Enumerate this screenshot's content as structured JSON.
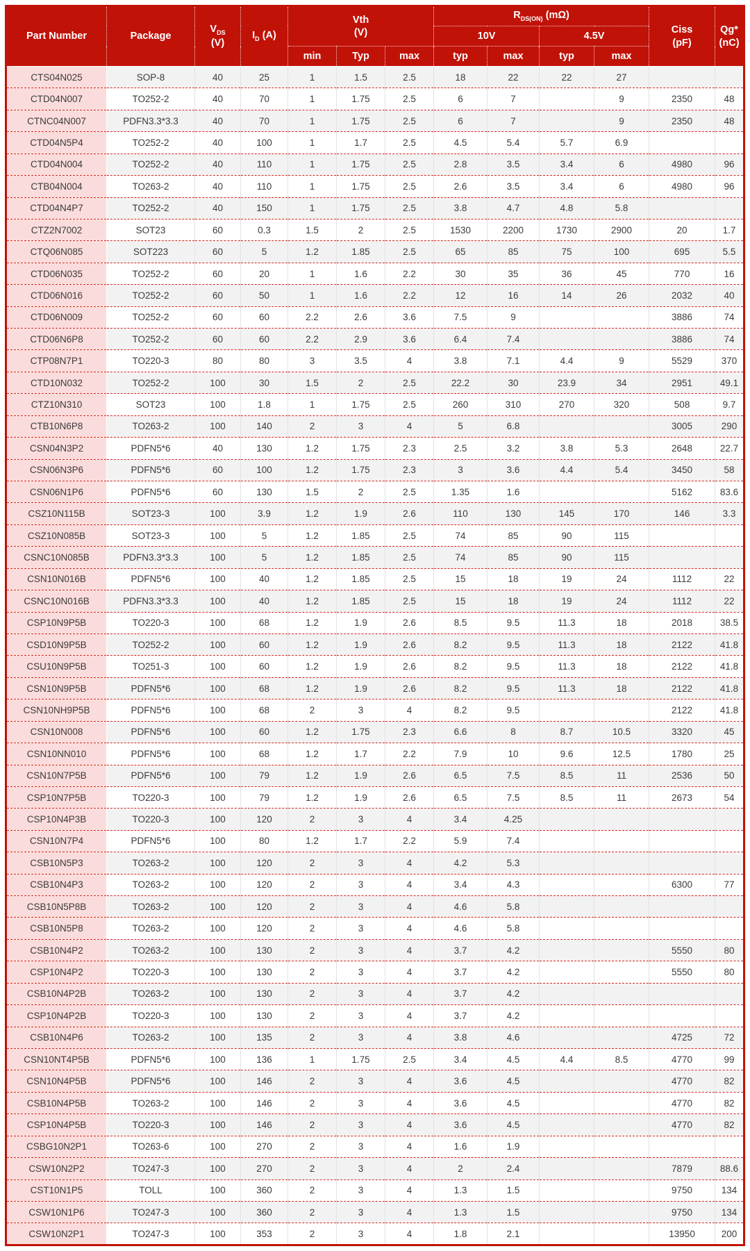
{
  "colors": {
    "header_red": "#c11208",
    "row_separator_red": "#d4261c",
    "part_number_column_pink": "#fbdcdc",
    "zebra_gray": "#f2f2f2"
  },
  "header": {
    "part_number": "Part Number",
    "package": "Package",
    "vds": {
      "base": "V",
      "sub": "DS",
      "unit": "(V)"
    },
    "id": {
      "base": "I",
      "sub": "D",
      "unit": "(A)"
    },
    "vth": {
      "title": "Vth",
      "unit": "(V)",
      "subcols": [
        "min",
        "Typ",
        "max"
      ]
    },
    "rdson": {
      "base": "R",
      "sub": "DS(ON)",
      "unit": "(mΩ)",
      "groups": [
        "10V",
        "4.5V"
      ],
      "subcols": [
        "typ",
        "max",
        "typ",
        "max"
      ]
    },
    "ciss": {
      "title": "Ciss",
      "unit": "(pF)"
    },
    "qg": {
      "title": "Qg*",
      "unit": "(nC)"
    }
  },
  "table": {
    "columns": [
      "Part Number",
      "Package",
      "VDS (V)",
      "ID (A)",
      "Vth min (V)",
      "Vth Typ (V)",
      "Vth max (V)",
      "RDS(ON) 10V typ (mΩ)",
      "RDS(ON) 10V max (mΩ)",
      "RDS(ON) 4.5V typ (mΩ)",
      "RDS(ON) 4.5V max (mΩ)",
      "Ciss (pF)",
      "Qg* (nC)"
    ],
    "rows": [
      [
        "CTS04N025",
        "SOP-8",
        "40",
        "25",
        "1",
        "1.5",
        "2.5",
        "18",
        "22",
        "22",
        "27",
        "",
        ""
      ],
      [
        "CTD04N007",
        "TO252-2",
        "40",
        "70",
        "1",
        "1.75",
        "2.5",
        "6",
        "7",
        "",
        "9",
        "2350",
        "48"
      ],
      [
        "CTNC04N007",
        "PDFN3.3*3.3",
        "40",
        "70",
        "1",
        "1.75",
        "2.5",
        "6",
        "7",
        "",
        "9",
        "2350",
        "48"
      ],
      [
        "CTD04N5P4",
        "TO252-2",
        "40",
        "100",
        "1",
        "1.7",
        "2.5",
        "4.5",
        "5.4",
        "5.7",
        "6.9",
        "",
        ""
      ],
      [
        "CTD04N004",
        "TO252-2",
        "40",
        "110",
        "1",
        "1.75",
        "2.5",
        "2.8",
        "3.5",
        "3.4",
        "6",
        "4980",
        "96"
      ],
      [
        "CTB04N004",
        "TO263-2",
        "40",
        "110",
        "1",
        "1.75",
        "2.5",
        "2.6",
        "3.5",
        "3.4",
        "6",
        "4980",
        "96"
      ],
      [
        "CTD04N4P7",
        "TO252-2",
        "40",
        "150",
        "1",
        "1.75",
        "2.5",
        "3.8",
        "4.7",
        "4.8",
        "5.8",
        "",
        ""
      ],
      [
        "CTZ2N7002",
        "SOT23",
        "60",
        "0.3",
        "1.5",
        "2",
        "2.5",
        "1530",
        "2200",
        "1730",
        "2900",
        "20",
        "1.7"
      ],
      [
        "CTQ06N085",
        "SOT223",
        "60",
        "5",
        "1.2",
        "1.85",
        "2.5",
        "65",
        "85",
        "75",
        "100",
        "695",
        "5.5"
      ],
      [
        "CTD06N035",
        "TO252-2",
        "60",
        "20",
        "1",
        "1.6",
        "2.2",
        "30",
        "35",
        "36",
        "45",
        "770",
        "16"
      ],
      [
        "CTD06N016",
        "TO252-2",
        "60",
        "50",
        "1",
        "1.6",
        "2.2",
        "12",
        "16",
        "14",
        "26",
        "2032",
        "40"
      ],
      [
        "CTD06N009",
        "TO252-2",
        "60",
        "60",
        "2.2",
        "2.6",
        "3.6",
        "7.5",
        "9",
        "",
        "",
        "3886",
        "74"
      ],
      [
        "CTD06N6P8",
        "TO252-2",
        "60",
        "60",
        "2.2",
        "2.9",
        "3.6",
        "6.4",
        "7.4",
        "",
        "",
        "3886",
        "74"
      ],
      [
        "CTP08N7P1",
        "TO220-3",
        "80",
        "80",
        "3",
        "3.5",
        "4",
        "3.8",
        "7.1",
        "4.4",
        "9",
        "5529",
        "370"
      ],
      [
        "CTD10N032",
        "TO252-2",
        "100",
        "30",
        "1.5",
        "2",
        "2.5",
        "22.2",
        "30",
        "23.9",
        "34",
        "2951",
        "49.1"
      ],
      [
        "CTZ10N310",
        "SOT23",
        "100",
        "1.8",
        "1",
        "1.75",
        "2.5",
        "260",
        "310",
        "270",
        "320",
        "508",
        "9.7"
      ],
      [
        "CTB10N6P8",
        "TO263-2",
        "100",
        "140",
        "2",
        "3",
        "4",
        "5",
        "6.8",
        "",
        "",
        "3005",
        "290"
      ],
      [
        "CSN04N3P2",
        "PDFN5*6",
        "40",
        "130",
        "1.2",
        "1.75",
        "2.3",
        "2.5",
        "3.2",
        "3.8",
        "5.3",
        "2648",
        "22.7"
      ],
      [
        "CSN06N3P6",
        "PDFN5*6",
        "60",
        "100",
        "1.2",
        "1.75",
        "2.3",
        "3",
        "3.6",
        "4.4",
        "5.4",
        "3450",
        "58"
      ],
      [
        "CSN06N1P6",
        "PDFN5*6",
        "60",
        "130",
        "1.5",
        "2",
        "2.5",
        "1.35",
        "1.6",
        "",
        "",
        "5162",
        "83.6"
      ],
      [
        "CSZ10N115B",
        "SOT23-3",
        "100",
        "3.9",
        "1.2",
        "1.9",
        "2.6",
        "110",
        "130",
        "145",
        "170",
        "146",
        "3.3"
      ],
      [
        "CSZ10N085B",
        "SOT23-3",
        "100",
        "5",
        "1.2",
        "1.85",
        "2.5",
        "74",
        "85",
        "90",
        "115",
        "",
        ""
      ],
      [
        "CSNC10N085B",
        "PDFN3.3*3.3",
        "100",
        "5",
        "1.2",
        "1.85",
        "2.5",
        "74",
        "85",
        "90",
        "115",
        "",
        ""
      ],
      [
        "CSN10N016B",
        "PDFN5*6",
        "100",
        "40",
        "1.2",
        "1.85",
        "2.5",
        "15",
        "18",
        "19",
        "24",
        "1112",
        "22"
      ],
      [
        "CSNC10N016B",
        "PDFN3.3*3.3",
        "100",
        "40",
        "1.2",
        "1.85",
        "2.5",
        "15",
        "18",
        "19",
        "24",
        "1112",
        "22"
      ],
      [
        "CSP10N9P5B",
        "TO220-3",
        "100",
        "68",
        "1.2",
        "1.9",
        "2.6",
        "8.5",
        "9.5",
        "11.3",
        "18",
        "2018",
        "38.5"
      ],
      [
        "CSD10N9P5B",
        "TO252-2",
        "100",
        "60",
        "1.2",
        "1.9",
        "2.6",
        "8.2",
        "9.5",
        "11.3",
        "18",
        "2122",
        "41.8"
      ],
      [
        "CSU10N9P5B",
        "TO251-3",
        "100",
        "60",
        "1.2",
        "1.9",
        "2.6",
        "8.2",
        "9.5",
        "11.3",
        "18",
        "2122",
        "41.8"
      ],
      [
        "CSN10N9P5B",
        "PDFN5*6",
        "100",
        "68",
        "1.2",
        "1.9",
        "2.6",
        "8.2",
        "9.5",
        "11.3",
        "18",
        "2122",
        "41.8"
      ],
      [
        "CSN10NH9P5B",
        "PDFN5*6",
        "100",
        "68",
        "2",
        "3",
        "4",
        "8.2",
        "9.5",
        "",
        "",
        "2122",
        "41.8"
      ],
      [
        "CSN10N008",
        "PDFN5*6",
        "100",
        "60",
        "1.2",
        "1.75",
        "2.3",
        "6.6",
        "8",
        "8.7",
        "10.5",
        "3320",
        "45"
      ],
      [
        "CSN10NN010",
        "PDFN5*6",
        "100",
        "68",
        "1.2",
        "1.7",
        "2.2",
        "7.9",
        "10",
        "9.6",
        "12.5",
        "1780",
        "25"
      ],
      [
        "CSN10N7P5B",
        "PDFN5*6",
        "100",
        "79",
        "1.2",
        "1.9",
        "2.6",
        "6.5",
        "7.5",
        "8.5",
        "11",
        "2536",
        "50"
      ],
      [
        "CSP10N7P5B",
        "TO220-3",
        "100",
        "79",
        "1.2",
        "1.9",
        "2.6",
        "6.5",
        "7.5",
        "8.5",
        "11",
        "2673",
        "54"
      ],
      [
        "CSP10N4P3B",
        "TO220-3",
        "100",
        "120",
        "2",
        "3",
        "4",
        "3.4",
        "4.25",
        "",
        "",
        "",
        ""
      ],
      [
        "CSN10N7P4",
        "PDFN5*6",
        "100",
        "80",
        "1.2",
        "1.7",
        "2.2",
        "5.9",
        "7.4",
        "",
        "",
        "",
        ""
      ],
      [
        "CSB10N5P3",
        "TO263-2",
        "100",
        "120",
        "2",
        "3",
        "4",
        "4.2",
        "5.3",
        "",
        "",
        "",
        ""
      ],
      [
        "CSB10N4P3",
        "TO263-2",
        "100",
        "120",
        "2",
        "3",
        "4",
        "3.4",
        "4.3",
        "",
        "",
        "6300",
        "77"
      ],
      [
        "CSB10N5P8B",
        "TO263-2",
        "100",
        "120",
        "2",
        "3",
        "4",
        "4.6",
        "5.8",
        "",
        "",
        "",
        ""
      ],
      [
        "CSB10N5P8",
        "TO263-2",
        "100",
        "120",
        "2",
        "3",
        "4",
        "4.6",
        "5.8",
        "",
        "",
        "",
        ""
      ],
      [
        "CSB10N4P2",
        "TO263-2",
        "100",
        "130",
        "2",
        "3",
        "4",
        "3.7",
        "4.2",
        "",
        "",
        "5550",
        "80"
      ],
      [
        "CSP10N4P2",
        "TO220-3",
        "100",
        "130",
        "2",
        "3",
        "4",
        "3.7",
        "4.2",
        "",
        "",
        "5550",
        "80"
      ],
      [
        "CSB10N4P2B",
        "TO263-2",
        "100",
        "130",
        "2",
        "3",
        "4",
        "3.7",
        "4.2",
        "",
        "",
        "",
        ""
      ],
      [
        "CSP10N4P2B",
        "TO220-3",
        "100",
        "130",
        "2",
        "3",
        "4",
        "3.7",
        "4.2",
        "",
        "",
        "",
        ""
      ],
      [
        "CSB10N4P6",
        "TO263-2",
        "100",
        "135",
        "2",
        "3",
        "4",
        "3.8",
        "4.6",
        "",
        "",
        "4725",
        "72"
      ],
      [
        "CSN10NT4P5B",
        "PDFN5*6",
        "100",
        "136",
        "1",
        "1.75",
        "2.5",
        "3.4",
        "4.5",
        "4.4",
        "8.5",
        "4770",
        "99"
      ],
      [
        "CSN10N4P5B",
        "PDFN5*6",
        "100",
        "146",
        "2",
        "3",
        "4",
        "3.6",
        "4.5",
        "",
        "",
        "4770",
        "82"
      ],
      [
        "CSB10N4P5B",
        "TO263-2",
        "100",
        "146",
        "2",
        "3",
        "4",
        "3.6",
        "4.5",
        "",
        "",
        "4770",
        "82"
      ],
      [
        "CSP10N4P5B",
        "TO220-3",
        "100",
        "146",
        "2",
        "3",
        "4",
        "3.6",
        "4.5",
        "",
        "",
        "4770",
        "82"
      ],
      [
        "CSBG10N2P1",
        "TO263-6",
        "100",
        "270",
        "2",
        "3",
        "4",
        "1.6",
        "1.9",
        "",
        "",
        "",
        ""
      ],
      [
        "CSW10N2P2",
        "TO247-3",
        "100",
        "270",
        "2",
        "3",
        "4",
        "2",
        "2.4",
        "",
        "",
        "7879",
        "88.6"
      ],
      [
        "CST10N1P5",
        "TOLL",
        "100",
        "360",
        "2",
        "3",
        "4",
        "1.3",
        "1.5",
        "",
        "",
        "9750",
        "134"
      ],
      [
        "CSW10N1P6",
        "TO247-3",
        "100",
        "360",
        "2",
        "3",
        "4",
        "1.3",
        "1.5",
        "",
        "",
        "9750",
        "134"
      ],
      [
        "CSW10N2P1",
        "TO247-3",
        "100",
        "353",
        "2",
        "3",
        "4",
        "1.8",
        "2.1",
        "",
        "",
        "13950",
        "200"
      ]
    ]
  }
}
